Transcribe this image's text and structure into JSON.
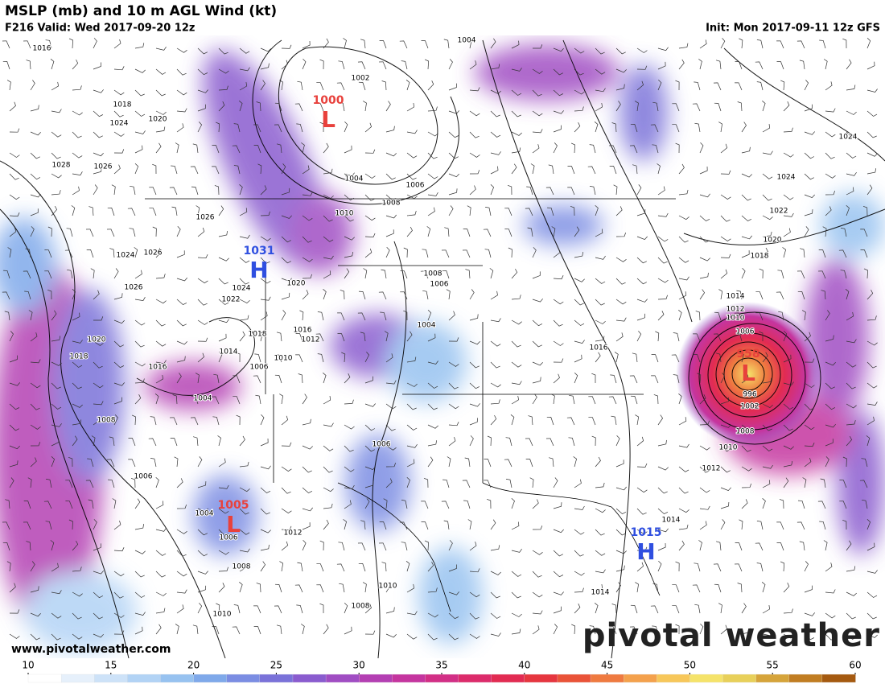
{
  "header": {
    "title": "MSLP (mb) and 10 m AGL Wind (kt)",
    "valid": "F216 Valid: Wed 2017-09-20 12z",
    "init": "Init: Mon 2017-09-11 12z GFS"
  },
  "centers": [
    {
      "letter": "L",
      "pressure": 1000,
      "color": "#e8413c"
    },
    {
      "letter": "H",
      "pressure": 1031,
      "color": "#2f4fe0"
    },
    {
      "letter": "L",
      "pressure": 1005,
      "color": "#e8413c"
    },
    {
      "letter": "H",
      "pressure": 1015,
      "color": "#2f4fe0"
    },
    {
      "letter": "L",
      "pressure": 958,
      "color": "#e8413c"
    }
  ],
  "isobar_labels": [
    1016,
    1004,
    1002,
    1018,
    1024,
    1020,
    1028,
    1026,
    1004,
    1006,
    1008,
    1010,
    1026,
    1024,
    1026,
    1026,
    1024,
    1022,
    1020,
    1008,
    1006,
    1018,
    1016,
    1012,
    1014,
    1010,
    1006,
    1004,
    1020,
    1018,
    1016,
    1004,
    1008,
    1006,
    1006,
    1004,
    1006,
    1012,
    1008,
    1010,
    1008,
    1010,
    1016,
    1014,
    1012,
    1010,
    1006,
    996,
    1002,
    1008,
    1010,
    1012,
    1014,
    1014,
    1024,
    1024,
    1022,
    1020,
    1018
  ],
  "footer": {
    "website": "www.pivotalweather.com",
    "logo": "pivotal weather"
  },
  "colorbar": {
    "ticks": [
      10,
      15,
      20,
      25,
      30,
      35,
      40,
      45,
      50,
      55,
      60
    ],
    "colors": [
      "#ffffff",
      "#e6f0fb",
      "#cde2f8",
      "#b2d3f5",
      "#97c2f0",
      "#7fa9ea",
      "#7b8de3",
      "#7a72d9",
      "#8a5ccf",
      "#a04dc3",
      "#b43fb3",
      "#c5359f",
      "#d22f86",
      "#dc2b6b",
      "#e22b52",
      "#e6363f",
      "#ea5338",
      "#ef7a40",
      "#f4a14c",
      "#f7c75a",
      "#f5e36a",
      "#e8d05a",
      "#d6a43a",
      "#c17d22",
      "#a55a10"
    ]
  }
}
